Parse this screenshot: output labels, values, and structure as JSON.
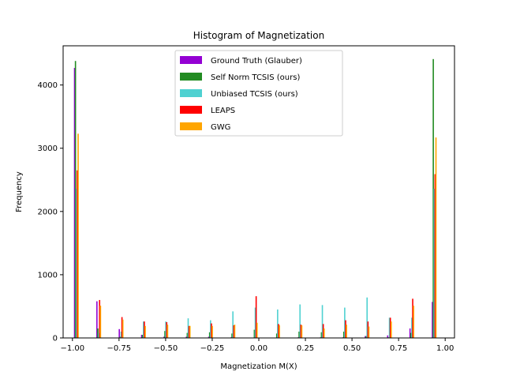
{
  "chart_data": {
    "type": "bar",
    "title": "Histogram of Magnetization",
    "xlabel": "Magnetization M(X)",
    "ylabel": "Frequency",
    "xlim": [
      -1.05,
      1.05
    ],
    "ylim": [
      0,
      4620
    ],
    "xticks": [
      -1.0,
      -0.75,
      -0.5,
      -0.25,
      0.0,
      0.25,
      0.5,
      0.75,
      1.0
    ],
    "xtick_labels": [
      "−1.00",
      "−0.75",
      "−0.50",
      "−0.25",
      "0.00",
      "0.25",
      "0.50",
      "0.75",
      "1.00"
    ],
    "yticks": [
      0,
      1000,
      2000,
      3000,
      4000
    ],
    "ytick_labels": [
      "0",
      "1000",
      "2000",
      "3000",
      "4000"
    ],
    "legend_position": "top-center",
    "bin_centers": [
      -0.98,
      -0.86,
      -0.74,
      -0.62,
      -0.5,
      -0.38,
      -0.26,
      -0.14,
      -0.02,
      0.1,
      0.22,
      0.34,
      0.46,
      0.58,
      0.7,
      0.82,
      0.94
    ],
    "series": [
      {
        "name": "Ground Truth (Glauber)",
        "color": "#9400d3",
        "values": [
          4270,
          580,
          140,
          50,
          20,
          20,
          20,
          10,
          0,
          0,
          10,
          10,
          10,
          30,
          40,
          150,
          570
        ]
      },
      {
        "name": "Self Norm TCSIS (ours)",
        "color": "#228b22",
        "values": [
          4380,
          150,
          20,
          50,
          110,
          80,
          90,
          70,
          130,
          70,
          100,
          90,
          100,
          30,
          10,
          80,
          4410
        ]
      },
      {
        "name": "Unbiased TCSIS (ours)",
        "color": "#4fd1d1",
        "values": [
          2360,
          80,
          100,
          260,
          260,
          310,
          280,
          420,
          480,
          450,
          530,
          520,
          480,
          640,
          320,
          320,
          2360
        ]
      },
      {
        "name": "LEAPS",
        "color": "#ff0000",
        "values": [
          2650,
          600,
          330,
          260,
          250,
          190,
          230,
          200,
          660,
          220,
          210,
          220,
          280,
          260,
          320,
          620,
          2590
        ]
      },
      {
        "name": "GWG",
        "color": "#ffa500",
        "values": [
          3230,
          510,
          290,
          190,
          210,
          190,
          190,
          210,
          240,
          200,
          200,
          150,
          210,
          180,
          260,
          510,
          3170
        ]
      }
    ]
  }
}
